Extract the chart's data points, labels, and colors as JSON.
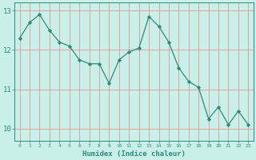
{
  "x": [
    0,
    1,
    2,
    3,
    4,
    5,
    6,
    7,
    8,
    9,
    10,
    11,
    12,
    13,
    14,
    15,
    16,
    17,
    18,
    19,
    20,
    21,
    22,
    23
  ],
  "y": [
    12.3,
    12.7,
    12.9,
    12.5,
    12.2,
    12.1,
    11.75,
    11.65,
    11.65,
    11.15,
    11.75,
    11.95,
    12.05,
    12.85,
    12.6,
    12.2,
    11.55,
    11.2,
    11.05,
    10.25,
    10.55,
    10.1,
    10.45,
    10.1
  ],
  "line_color": "#2e8b7a",
  "marker": "D",
  "marker_size": 2.2,
  "bg_color": "#c8f0e8",
  "grid_color": "#f08080",
  "ylabel_ticks": [
    10,
    11,
    12,
    13
  ],
  "xlabel": "Humidex (Indice chaleur)",
  "xlim": [
    -0.5,
    23.5
  ],
  "ylim": [
    9.7,
    13.2
  ],
  "tick_label_color": "#2e8b7a"
}
